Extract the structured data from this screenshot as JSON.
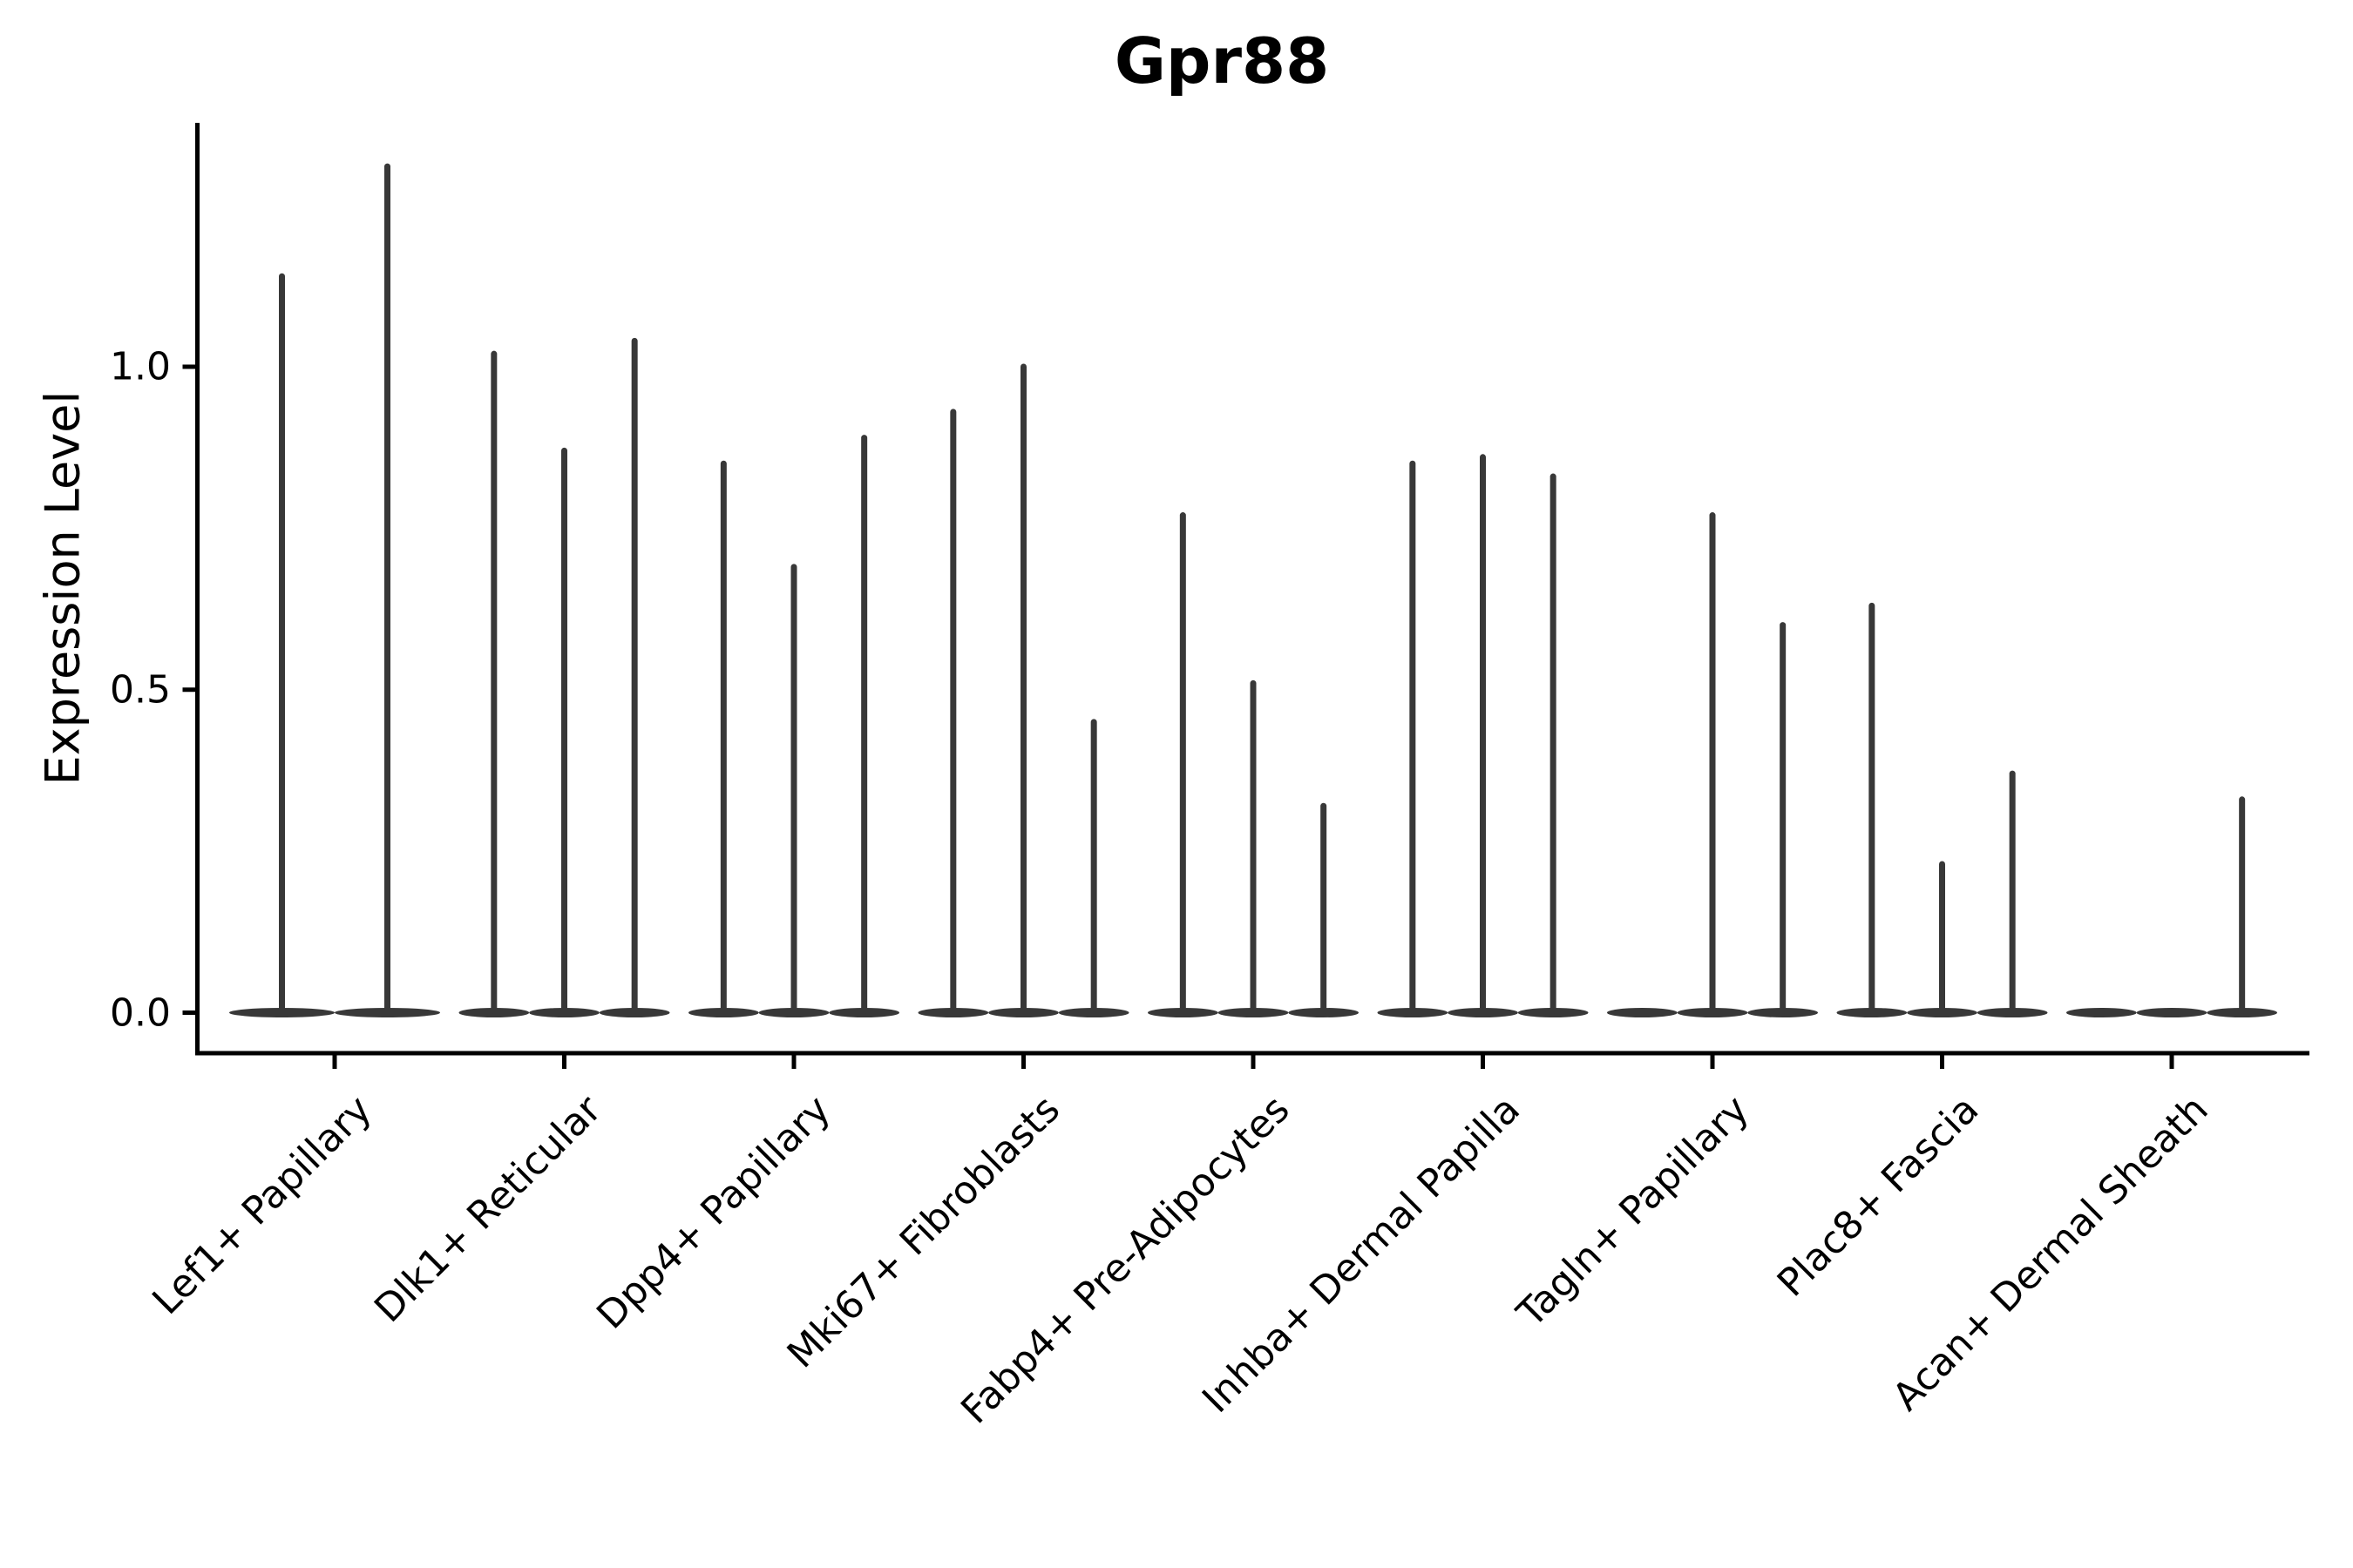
{
  "chart_data": {
    "type": "violin",
    "title": "Gpr88",
    "ylabel": "Expression Level",
    "xlabel": "",
    "grid": false,
    "legend": "none",
    "ylim": [
      -0.065,
      1.38
    ],
    "yticks": [
      0.0,
      0.5,
      1.0
    ],
    "ytick_labels": [
      "0.0",
      "0.5",
      "1.0"
    ],
    "violin_color": "#383838",
    "axis_color": "#000000",
    "description": "Split violin plot of Gpr88 expression; each category shows flat violin bodies at zero expression with thin spikes reaching the listed maximum expression value per sub-violin (0 = flat violin with no spike).",
    "categories": [
      {
        "label": "Lef1+ Papillary",
        "violins": [
          1.14,
          1.31
        ]
      },
      {
        "label": "Dlk1+ Reticular",
        "violins": [
          1.02,
          0.87,
          1.04
        ]
      },
      {
        "label": "Dpp4+ Papillary",
        "violins": [
          0.85,
          0.69,
          0.89
        ]
      },
      {
        "label": "Mki67+ Fibroblasts",
        "violins": [
          0.93,
          1.0,
          0.45
        ]
      },
      {
        "label": "Fabp4+ Pre-Adipocytes",
        "violins": [
          0.77,
          0.51,
          0.32
        ]
      },
      {
        "label": "Inhba+ Dermal Papilla",
        "violins": [
          0.85,
          0.86,
          0.83
        ]
      },
      {
        "label": "Tagln+ Papillary",
        "violins": [
          0,
          0.77,
          0.6
        ]
      },
      {
        "label": "Plac8+ Fascia",
        "violins": [
          0.63,
          0.23,
          0.37
        ]
      },
      {
        "label": "Acan+ Dermal Sheath",
        "violins": [
          0,
          0,
          0.33
        ]
      }
    ]
  }
}
